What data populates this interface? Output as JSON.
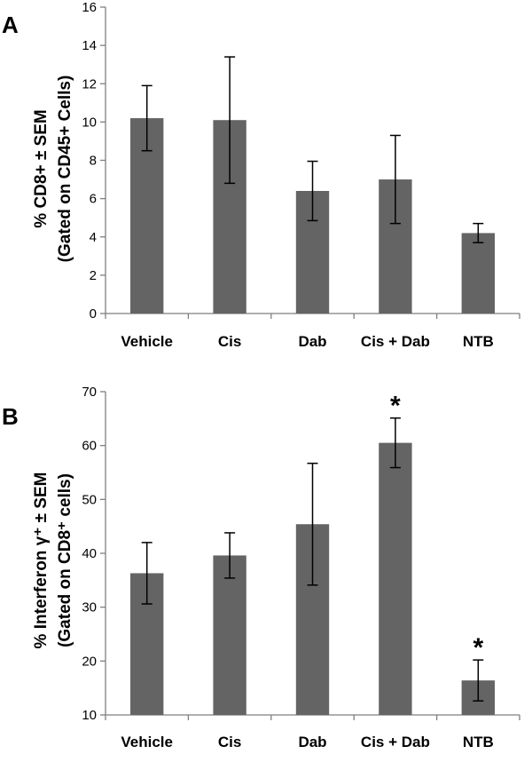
{
  "chart_data": [
    {
      "type": "bar",
      "panel": "A",
      "categories": [
        "Vehicle",
        "Cis",
        "Dab",
        "Cis + Dab",
        "NTB"
      ],
      "values": [
        10.2,
        10.1,
        6.4,
        7.0,
        4.2
      ],
      "error": [
        1.7,
        3.3,
        1.55,
        2.3,
        0.5
      ],
      "significant": [
        false,
        false,
        false,
        false,
        false
      ],
      "ylabel_line1": "% CD8+ ± SEM",
      "ylabel_line2": "(Gated on CD45+ Cells)",
      "ylim": [
        0,
        16
      ],
      "yticks": [
        0,
        2,
        4,
        6,
        8,
        10,
        12,
        14,
        16
      ],
      "bar_color": "#646464",
      "grid": false
    },
    {
      "type": "bar",
      "panel": "B",
      "categories": [
        "Vehicle",
        "Cis",
        "Dab",
        "Cis + Dab",
        "NTB"
      ],
      "values": [
        36.3,
        39.6,
        45.4,
        60.5,
        16.4
      ],
      "error": [
        5.7,
        4.2,
        11.3,
        4.6,
        3.8
      ],
      "significant": [
        false,
        false,
        false,
        true,
        true
      ],
      "sig_marker": "*",
      "ylabel_line1": "% Interferon γ⁺ ± SEM",
      "ylabel_line2": "(Gated on CD8⁺ cells)",
      "ylim": [
        10,
        70
      ],
      "yticks": [
        10,
        20,
        30,
        40,
        50,
        60,
        70
      ],
      "bar_color": "#646464",
      "grid": false
    }
  ]
}
